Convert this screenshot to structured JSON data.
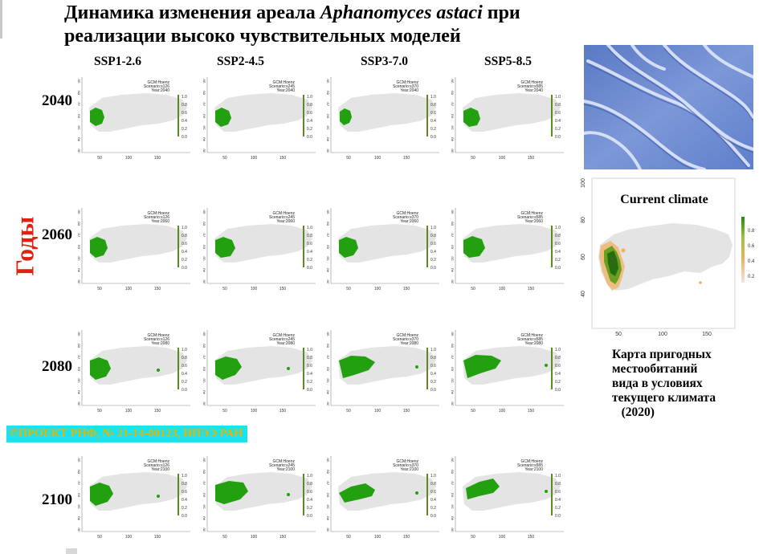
{
  "title": {
    "line1_prefix": "Динамика изменения ареала ",
    "line1_species": "Aphanomyces astaci",
    "line1_suffix": " при",
    "line2": "реализации высоко чувствительных моделей"
  },
  "vertical_label": "Годы",
  "scenarios": [
    "SSP1-2.6",
    "SSP2-4.5",
    "SSP3-7.0",
    "SSP5-8.5"
  ],
  "scenario_codes": [
    "s126",
    "s245",
    "s370",
    "s585"
  ],
  "years": [
    "2040",
    "2060",
    "2080",
    "2100"
  ],
  "panel_text": {
    "gcm": "GCM:Hoenz",
    "scenario_prefix": "Scenario:",
    "year_prefix": "Year:",
    "x_ticks": [
      "50",
      "100",
      "150"
    ],
    "y_ticks": [
      "30",
      "40",
      "50",
      "60",
      "70",
      "80",
      "90"
    ],
    "legend_ticks": [
      "0.0",
      "0.2",
      "0.4",
      "0.6",
      "0.8",
      "1.0"
    ]
  },
  "project_label": "©ПРОЕКТ РНФ, № 21-14-00123, ИПЭЭ РАН",
  "current_climate": {
    "title": "Current climate",
    "x_ticks": [
      "50",
      "100",
      "150"
    ],
    "y_ticks": [
      "40",
      "60",
      "80",
      "100"
    ],
    "legend_ticks": [
      "0.2",
      "0.4",
      "0.6",
      "0.8"
    ]
  },
  "caption": {
    "lines": [
      "Карта пригодных",
      "местообитаний",
      "вида в условиях",
      "текущего климата",
      "   (2020)"
    ]
  },
  "colors": {
    "accent_red": "#e02010",
    "project_bg": "#1ae3f0",
    "project_text": "#e8b400",
    "suitable_green": "#22a010",
    "land_grey": "#e4e4e4"
  }
}
